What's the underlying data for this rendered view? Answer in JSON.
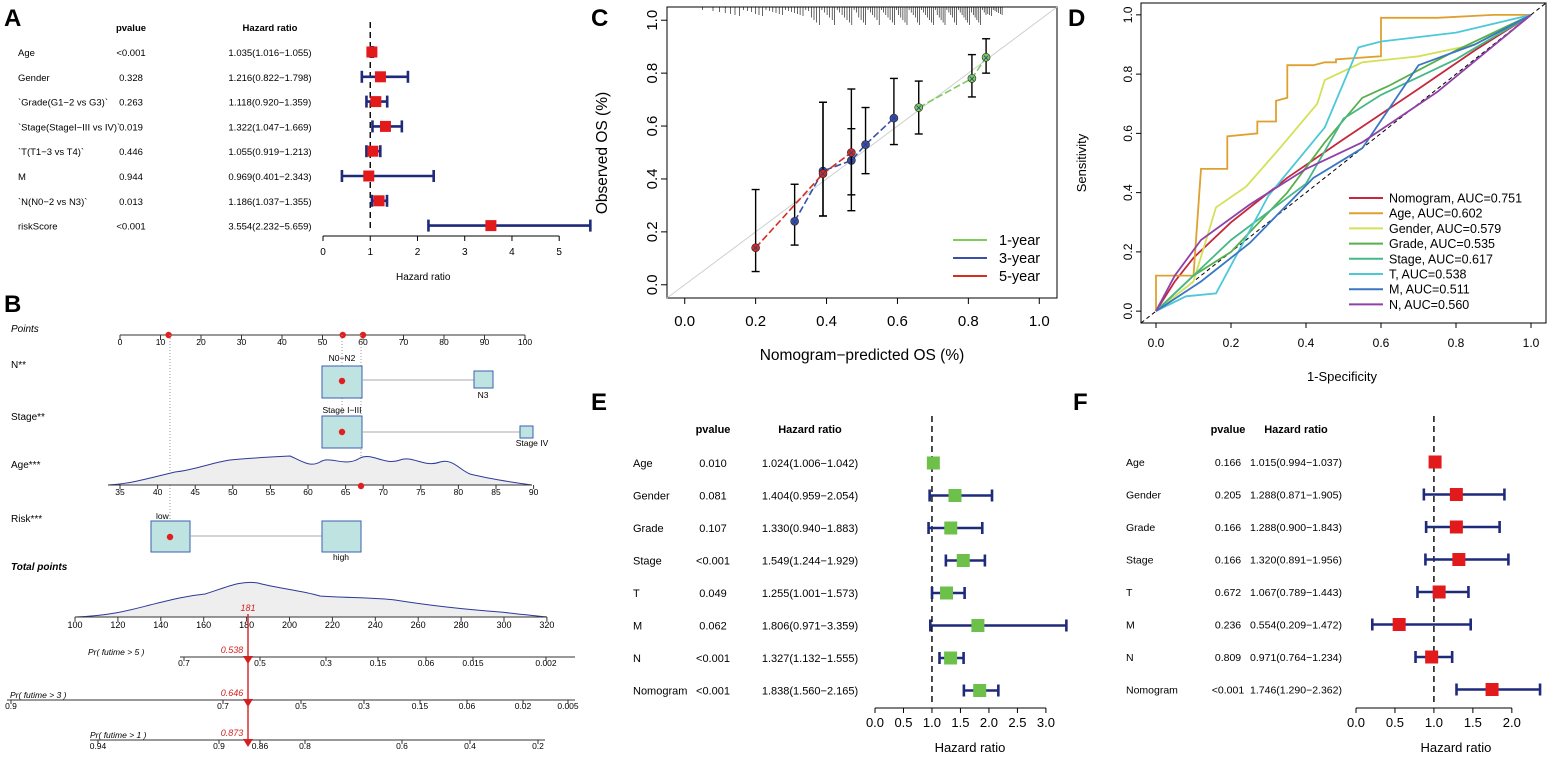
{
  "panels": {
    "A": "A",
    "B": "B",
    "C": "C",
    "D": "D",
    "E": "E",
    "F": "F"
  },
  "chart_data": [
    {
      "panel": "A",
      "type": "forest",
      "col_pvalue": "pvalue",
      "col_hr": "Hazard ratio",
      "xlabel": "Hazard ratio",
      "xticks": [
        "0",
        "1",
        "2",
        "3",
        "4",
        "5"
      ],
      "xlim": [
        0,
        5.8
      ],
      "ref": 1,
      "marker_color": "#e31a1c",
      "rows": [
        {
          "label": "Age",
          "pvalue": "<0.001",
          "hr_text": "1.035(1.016−1.055)",
          "hr": 1.035,
          "lo": 1.016,
          "hi": 1.055
        },
        {
          "label": "Gender",
          "pvalue": "0.328",
          "hr_text": "1.216(0.822−1.798)",
          "hr": 1.216,
          "lo": 0.822,
          "hi": 1.798
        },
        {
          "label": "`Grade(G1−2 vs G3)`",
          "pvalue": "0.263",
          "hr_text": "1.118(0.920−1.359)",
          "hr": 1.118,
          "lo": 0.92,
          "hi": 1.359
        },
        {
          "label": "`Stage(StageI−III vs IV)`",
          "pvalue": "0.019",
          "hr_text": "1.322(1.047−1.669)",
          "hr": 1.322,
          "lo": 1.047,
          "hi": 1.669
        },
        {
          "label": "`T(T1−3 vs T4)`",
          "pvalue": "0.446",
          "hr_text": "1.055(0.919−1.213)",
          "hr": 1.055,
          "lo": 0.919,
          "hi": 1.213
        },
        {
          "label": "M",
          "pvalue": "0.944",
          "hr_text": "0.969(0.401−2.343)",
          "hr": 0.969,
          "lo": 0.401,
          "hi": 2.343
        },
        {
          "label": "`N(N0−2 vs N3)`",
          "pvalue": "0.013",
          "hr_text": "1.186(1.037−1.355)",
          "hr": 1.186,
          "lo": 1.037,
          "hi": 1.355
        },
        {
          "label": "riskScore",
          "pvalue": "<0.001",
          "hr_text": "3.554(2.232−5.659)",
          "hr": 3.554,
          "lo": 2.232,
          "hi": 5.659
        }
      ]
    },
    {
      "panel": "B",
      "type": "nomogram",
      "points": {
        "label": "Points",
        "ticks": [
          "0",
          "10",
          "20",
          "30",
          "40",
          "50",
          "60",
          "70",
          "80",
          "90",
          "100"
        ],
        "selected": [
          12,
          55,
          60
        ]
      },
      "n": {
        "label": "N**",
        "levels": [
          "N0−N2",
          "N3"
        ],
        "selected": "N0−N2"
      },
      "stage": {
        "label": "Stage**",
        "levels": [
          "Stage I−III",
          "Stage IV"
        ],
        "selected": "Stage I−III"
      },
      "age": {
        "label": "Age***",
        "ticks": [
          "35",
          "40",
          "45",
          "50",
          "55",
          "60",
          "65",
          "70",
          "75",
          "80",
          "85",
          "90"
        ],
        "selected": 68
      },
      "risk": {
        "label": "Risk***",
        "levels": [
          "low",
          "high"
        ],
        "selected": "low"
      },
      "total": {
        "label": "Total points",
        "ticks": [
          "100",
          "120",
          "140",
          "160",
          "180",
          "200",
          "220",
          "240",
          "260",
          "280",
          "300",
          "320"
        ],
        "selected": "181"
      },
      "surv5": {
        "label": "Pr( futime > 5 )",
        "ticks": [
          "0.7",
          "0.5",
          "0.3",
          "0.15",
          "0.06",
          "0.015",
          "0.002"
        ],
        "selected": "0.538"
      },
      "surv3": {
        "label": "Pr( futime > 3 )",
        "ticks": [
          "0.9",
          "0.7",
          "0.5",
          "0.3",
          "0.15",
          "0.06",
          "0.02",
          "0.005"
        ],
        "selected": "0.646"
      },
      "surv1": {
        "label": "Pr( futime > 1 )",
        "ticks": [
          "0.94",
          "0.9",
          "0.86",
          "0.8",
          "0.6",
          "0.4",
          "0.2"
        ],
        "selected": "0.873"
      }
    },
    {
      "panel": "C",
      "type": "calibration",
      "xlabel": "Nomogram−predicted OS (%)",
      "ylabel": "Observed OS (%)",
      "xticks": [
        "0.0",
        "0.2",
        "0.4",
        "0.6",
        "0.8",
        "1.0"
      ],
      "yticks": [
        "0.0",
        "0.2",
        "0.4",
        "0.6",
        "0.8",
        "1.0"
      ],
      "xlim": [
        -0.05,
        1.05
      ],
      "ylim": [
        -0.05,
        1.05
      ],
      "series": [
        {
          "name": "1-year",
          "color": "#7ccd5a",
          "points": [
            {
              "x": 0.66,
              "y": 0.67,
              "lo": 0.57,
              "hi": 0.77
            },
            {
              "x": 0.81,
              "y": 0.78,
              "lo": 0.71,
              "hi": 0.87
            },
            {
              "x": 0.85,
              "y": 0.86,
              "lo": 0.8,
              "hi": 0.93
            }
          ]
        },
        {
          "name": "3-year",
          "color": "#3a4fa8",
          "points": [
            {
              "x": 0.31,
              "y": 0.24,
              "lo": 0.15,
              "hi": 0.38
            },
            {
              "x": 0.39,
              "y": 0.43,
              "lo": 0.26,
              "hi": 0.69
            },
            {
              "x": 0.47,
              "y": 0.47,
              "lo": 0.34,
              "hi": 0.59
            },
            {
              "x": 0.51,
              "y": 0.53,
              "lo": 0.42,
              "hi": 0.67
            },
            {
              "x": 0.59,
              "y": 0.63,
              "lo": 0.53,
              "hi": 0.78
            }
          ]
        },
        {
          "name": "5-year",
          "color": "#d62d20",
          "points": [
            {
              "x": 0.2,
              "y": 0.14,
              "lo": 0.05,
              "hi": 0.36
            },
            {
              "x": 0.39,
              "y": 0.42,
              "lo": 0.26,
              "hi": 0.69
            },
            {
              "x": 0.47,
              "y": 0.5,
              "lo": 0.28,
              "hi": 0.74
            }
          ]
        }
      ]
    },
    {
      "panel": "D",
      "type": "roc",
      "xlabel": "1-Specificity",
      "ylabel": "Sensitivity",
      "xticks": [
        "0.0",
        "0.2",
        "0.4",
        "0.6",
        "0.8",
        "1.0"
      ],
      "yticks": [
        "0.0",
        "0.2",
        "0.4",
        "0.6",
        "0.8",
        "1.0"
      ],
      "xlim": [
        -0.04,
        1.04
      ],
      "ylim": [
        -0.04,
        1.04
      ],
      "series": [
        {
          "name": "Nomogram, AUC=0.751",
          "color": "#c5283d",
          "points": [
            [
              0,
              0
            ],
            [
              0.05,
              0.1
            ],
            [
              0.1,
              0.18
            ],
            [
              0.2,
              0.3
            ],
            [
              0.35,
              0.45
            ],
            [
              0.5,
              0.58
            ],
            [
              0.7,
              0.75
            ],
            [
              0.85,
              0.88
            ],
            [
              1,
              1
            ]
          ]
        },
        {
          "name": "Age, AUC=0.602",
          "color": "#e0a030",
          "points": [
            [
              0,
              0
            ],
            [
              0,
              0.12
            ],
            [
              0.1,
              0.12
            ],
            [
              0.12,
              0.48
            ],
            [
              0.19,
              0.48
            ],
            [
              0.19,
              0.59
            ],
            [
              0.27,
              0.6
            ],
            [
              0.27,
              0.64
            ],
            [
              0.32,
              0.64
            ],
            [
              0.32,
              0.71
            ],
            [
              0.35,
              0.72
            ],
            [
              0.35,
              0.83
            ],
            [
              0.42,
              0.83
            ],
            [
              0.45,
              0.84
            ],
            [
              0.48,
              0.84
            ],
            [
              0.48,
              0.85
            ],
            [
              0.6,
              0.86
            ],
            [
              0.6,
              0.99
            ],
            [
              0.75,
              0.99
            ],
            [
              0.9,
              1
            ],
            [
              1,
              1
            ]
          ]
        },
        {
          "name": "Gender, AUC=0.579",
          "color": "#d4e157",
          "points": [
            [
              0,
              0
            ],
            [
              0.1,
              0.1
            ],
            [
              0.16,
              0.35
            ],
            [
              0.24,
              0.42
            ],
            [
              0.33,
              0.55
            ],
            [
              0.43,
              0.7
            ],
            [
              0.45,
              0.78
            ],
            [
              0.55,
              0.84
            ],
            [
              0.7,
              0.86
            ],
            [
              0.85,
              0.9
            ],
            [
              1,
              1
            ]
          ]
        },
        {
          "name": "Grade, AUC=0.535",
          "color": "#58b04a",
          "points": [
            [
              0,
              0
            ],
            [
              0.1,
              0.12
            ],
            [
              0.2,
              0.2
            ],
            [
              0.35,
              0.4
            ],
            [
              0.45,
              0.57
            ],
            [
              0.55,
              0.72
            ],
            [
              0.62,
              0.76
            ],
            [
              0.8,
              0.88
            ],
            [
              1,
              1
            ]
          ]
        },
        {
          "name": "Stage, AUC=0.617",
          "color": "#45b888",
          "points": [
            [
              0,
              0
            ],
            [
              0.2,
              0.24
            ],
            [
              0.4,
              0.43
            ],
            [
              0.5,
              0.65
            ],
            [
              0.6,
              0.73
            ],
            [
              0.8,
              0.85
            ],
            [
              1,
              1
            ]
          ]
        },
        {
          "name": "T, AUC=0.538",
          "color": "#4cc8d8",
          "points": [
            [
              0,
              0
            ],
            [
              0.08,
              0.05
            ],
            [
              0.16,
              0.06
            ],
            [
              0.3,
              0.39
            ],
            [
              0.45,
              0.62
            ],
            [
              0.54,
              0.89
            ],
            [
              0.6,
              0.91
            ],
            [
              0.8,
              0.94
            ],
            [
              1,
              1
            ]
          ]
        },
        {
          "name": "M, AUC=0.511",
          "color": "#3b76c4",
          "points": [
            [
              0,
              0
            ],
            [
              0.12,
              0.1
            ],
            [
              0.25,
              0.23
            ],
            [
              0.42,
              0.45
            ],
            [
              0.55,
              0.55
            ],
            [
              0.7,
              0.83
            ],
            [
              0.85,
              0.9
            ],
            [
              1,
              1
            ]
          ]
        },
        {
          "name": "N, AUC=0.560",
          "color": "#9041a8",
          "points": [
            [
              0,
              0
            ],
            [
              0.05,
              0.12
            ],
            [
              0.12,
              0.24
            ],
            [
              0.25,
              0.36
            ],
            [
              0.4,
              0.48
            ],
            [
              0.55,
              0.57
            ],
            [
              0.75,
              0.74
            ],
            [
              1,
              1
            ]
          ]
        }
      ]
    },
    {
      "panel": "E",
      "type": "forest",
      "col_pvalue": "pvalue",
      "col_hr": "Hazard ratio",
      "xlabel": "Hazard ratio",
      "xticks": [
        "0.0",
        "0.5",
        "1.0",
        "1.5",
        "2.0",
        "2.5",
        "3.0"
      ],
      "xlim": [
        0,
        3.3
      ],
      "ref": 1,
      "marker_color": "#6dc04a",
      "rows": [
        {
          "label": "Age",
          "pvalue": "0.010",
          "hr_text": "1.024(1.006−1.042)",
          "hr": 1.024,
          "lo": 1.006,
          "hi": 1.042
        },
        {
          "label": "Gender",
          "pvalue": "0.081",
          "hr_text": "1.404(0.959−2.054)",
          "hr": 1.404,
          "lo": 0.959,
          "hi": 2.054
        },
        {
          "label": "Grade",
          "pvalue": "0.107",
          "hr_text": "1.330(0.940−1.883)",
          "hr": 1.33,
          "lo": 0.94,
          "hi": 1.883
        },
        {
          "label": "Stage",
          "pvalue": "<0.001",
          "hr_text": "1.549(1.244−1.929)",
          "hr": 1.549,
          "lo": 1.244,
          "hi": 1.929
        },
        {
          "label": "T",
          "pvalue": "0.049",
          "hr_text": "1.255(1.001−1.573)",
          "hr": 1.255,
          "lo": 1.001,
          "hi": 1.573
        },
        {
          "label": "M",
          "pvalue": "0.062",
          "hr_text": "1.806(0.971−3.359)",
          "hr": 1.806,
          "lo": 0.971,
          "hi": 3.359
        },
        {
          "label": "N",
          "pvalue": "<0.001",
          "hr_text": "1.327(1.132−1.555)",
          "hr": 1.327,
          "lo": 1.132,
          "hi": 1.555
        },
        {
          "label": "Nomogram",
          "pvalue": "<0.001",
          "hr_text": "1.838(1.560−2.165)",
          "hr": 1.838,
          "lo": 1.56,
          "hi": 2.165
        }
      ]
    },
    {
      "panel": "F",
      "type": "forest",
      "col_pvalue": "pvalue",
      "col_hr": "Hazard ratio",
      "xlabel": "Hazard ratio",
      "xticks": [
        "0.0",
        "0.5",
        "1.0",
        "1.5",
        "2.0"
      ],
      "xlim": [
        0,
        2.4
      ],
      "ref": 1,
      "marker_color": "#e31a1c",
      "rows": [
        {
          "label": "Age",
          "pvalue": "0.166",
          "hr_text": "1.015(0.994−1.037)",
          "hr": 1.015,
          "lo": 0.994,
          "hi": 1.037
        },
        {
          "label": "Gender",
          "pvalue": "0.205",
          "hr_text": "1.288(0.871−1.905)",
          "hr": 1.288,
          "lo": 0.871,
          "hi": 1.905
        },
        {
          "label": "Grade",
          "pvalue": "0.166",
          "hr_text": "1.288(0.900−1.843)",
          "hr": 1.288,
          "lo": 0.9,
          "hi": 1.843
        },
        {
          "label": "Stage",
          "pvalue": "0.166",
          "hr_text": "1.320(0.891−1.956)",
          "hr": 1.32,
          "lo": 0.891,
          "hi": 1.956
        },
        {
          "label": "T",
          "pvalue": "0.672",
          "hr_text": "1.067(0.789−1.443)",
          "hr": 1.067,
          "lo": 0.789,
          "hi": 1.443
        },
        {
          "label": "M",
          "pvalue": "0.236",
          "hr_text": "0.554(0.209−1.472)",
          "hr": 0.554,
          "lo": 0.209,
          "hi": 1.472
        },
        {
          "label": "N",
          "pvalue": "0.809",
          "hr_text": "0.971(0.764−1.234)",
          "hr": 0.971,
          "lo": 0.764,
          "hi": 1.234
        },
        {
          "label": "Nomogram",
          "pvalue": "<0.001",
          "hr_text": "1.746(1.290−2.362)",
          "hr": 1.746,
          "lo": 1.29,
          "hi": 2.362
        }
      ]
    }
  ]
}
